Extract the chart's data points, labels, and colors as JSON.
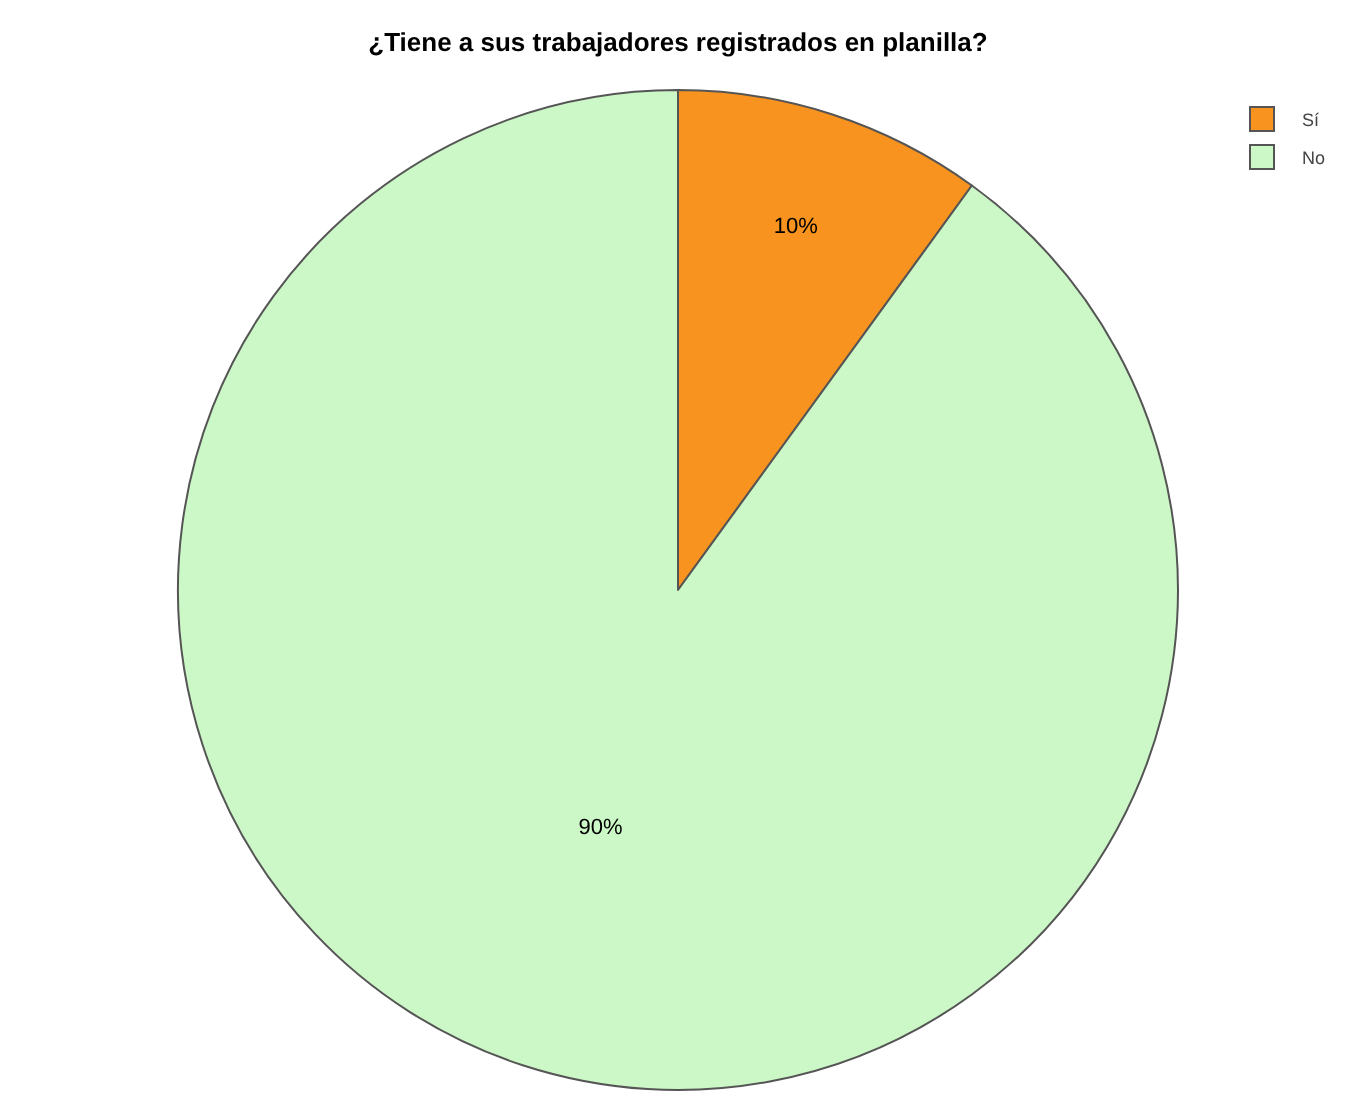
{
  "chart_data": {
    "type": "pie",
    "title": "¿Tiene a sus trabajadores registrados en planilla?",
    "categories": [
      "Sí",
      "No"
    ],
    "values": [
      10,
      90
    ],
    "value_labels": [
      "10%",
      "90%"
    ],
    "colors": [
      "#f7931e",
      "#ccf7c6"
    ],
    "legend": "top right"
  }
}
